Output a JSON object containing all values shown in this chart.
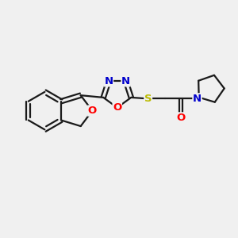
{
  "bg_color": "#f0f0f0",
  "bond_color": "#1a1a1a",
  "bond_lw": 1.6,
  "atom_colors": {
    "O": "#ff0000",
    "N": "#0000cc",
    "S": "#bbbb00",
    "C": "#1a1a1a"
  },
  "font_size": 9.5
}
